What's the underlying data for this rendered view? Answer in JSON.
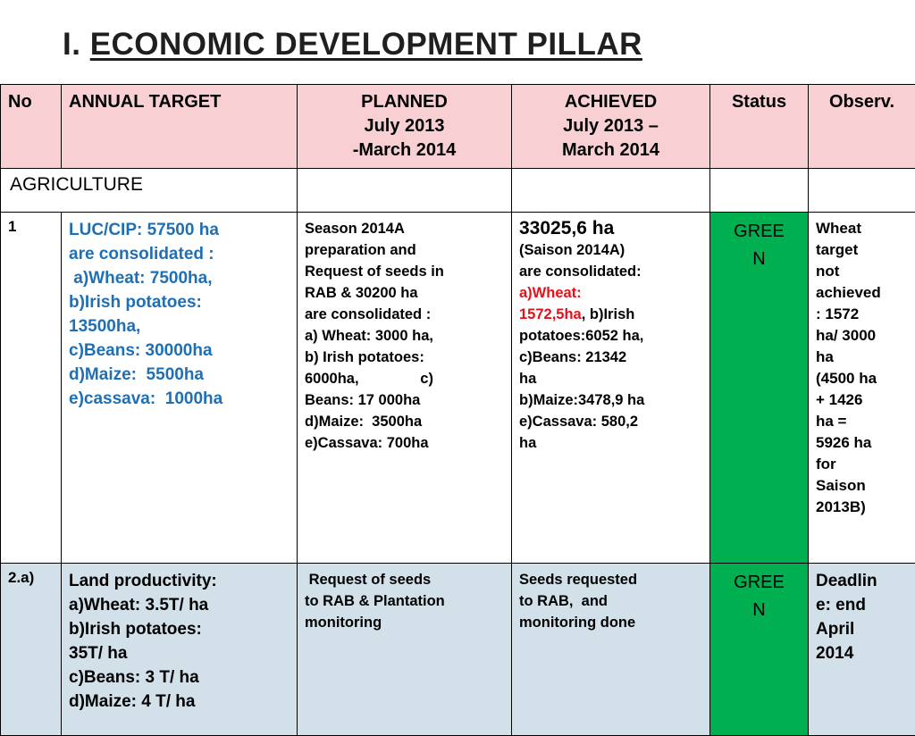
{
  "title": {
    "prefix": "I. ",
    "main": "ECONOMIC DEVELOPMENT PILLAR"
  },
  "header": {
    "no": "No",
    "annual_target": "ANNUAL TARGET",
    "planned": [
      "PLANNED",
      "July 2013",
      "-March 2014"
    ],
    "achieved": [
      "ACHIEVED",
      "July 2013 –",
      "March 2014"
    ],
    "status": "Status",
    "observ": "Observ."
  },
  "section": {
    "label": "AGRICULTURE"
  },
  "rows": [
    {
      "no": "1",
      "target": [
        "LUC/CIP: 57500 ha",
        "are consolidated :",
        " a)Wheat: 7500ha,",
        "b)Irish potatoes:",
        "13500ha,",
        "c)Beans: 30000ha",
        "d)Maize:  5500ha",
        "e)cassava:  1000ha"
      ],
      "planned": [
        "Season 2014A",
        "preparation and",
        "Request of seeds in",
        "RAB & 30200 ha",
        "are consolidated :",
        "a) Wheat: 3000 ha,",
        "b) Irish potatoes:",
        "6000ha,               c)",
        "Beans: 17 000ha",
        "d)Maize:  3500ha",
        "e)Cassava: 700ha"
      ],
      "achieved": {
        "head": "33025,6 ha",
        "l1": "(Saison 2014A)",
        "l2": "are consolidated:",
        "red1": "a)Wheat:",
        "red2": "1572,5ha",
        "after_red": ", b)Irish",
        "rest": [
          "potatoes:6052 ha,",
          "c)Beans: 21342",
          "ha",
          "b)Maize:3478,9 ha",
          "e)Cassava: 580,2",
          "ha"
        ]
      },
      "status": [
        "GREE",
        "N"
      ],
      "observ": [
        "Wheat",
        "target",
        "not",
        "achieved",
        ": 1572",
        "ha/ 3000",
        "ha",
        "(4500 ha",
        "+ 1426",
        "ha =",
        "5926 ha",
        "for",
        "Saison",
        "2013B)"
      ]
    },
    {
      "no": "2.a)",
      "target": [
        "Land productivity:",
        "a)Wheat: 3.5T/ ha",
        "b)Irish potatoes:",
        "35T/ ha",
        "c)Beans: 3 T/ ha",
        "d)Maize: 4 T/ ha"
      ],
      "planned": [
        " Request of seeds",
        "to RAB & Plantation",
        "monitoring"
      ],
      "achieved": [
        "Seeds requested",
        "to RAB,  and",
        "monitoring done"
      ],
      "status": [
        "GREE",
        "N"
      ],
      "observ": [
        "Deadlin",
        "e: end",
        "April",
        "2014"
      ]
    }
  ],
  "colors": {
    "header_bg": "#f8d0d3",
    "row2_bg": "#d2e0ea",
    "status_green": "#00b050",
    "target_blue": "#1f6fb5",
    "highlight_red": "#e0131c"
  }
}
